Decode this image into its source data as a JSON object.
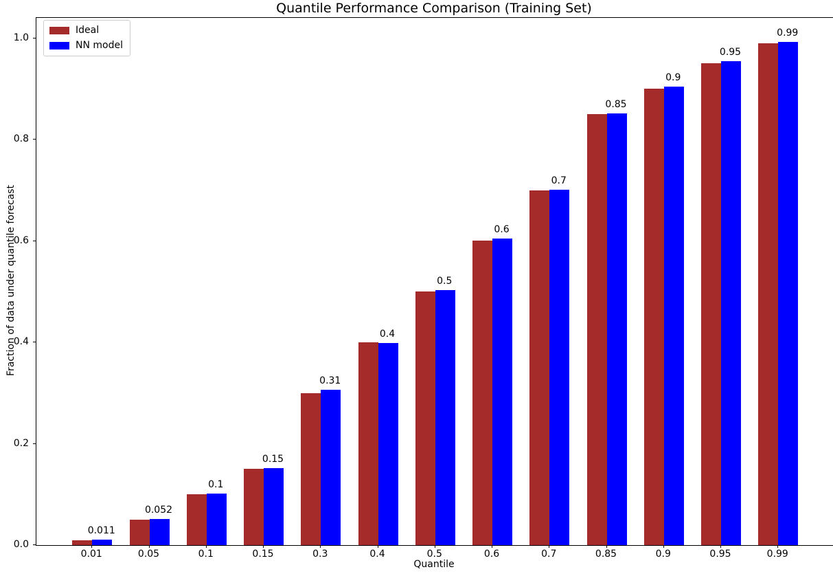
{
  "chart_data": {
    "type": "bar",
    "title": "Quantile Performance Comparison (Training Set)",
    "xlabel": "Quantile",
    "ylabel": "Fraction of data under quantile forecast",
    "categories": [
      "0.01",
      "0.05",
      "0.1",
      "0.15",
      "0.3",
      "0.4",
      "0.5",
      "0.6",
      "0.7",
      "0.85",
      "0.9",
      "0.95",
      "0.99"
    ],
    "series": [
      {
        "name": "Ideal",
        "color": "#A52A2A",
        "values": [
          0.01,
          0.05,
          0.1,
          0.15,
          0.3,
          0.4,
          0.5,
          0.6,
          0.7,
          0.85,
          0.9,
          0.95,
          0.99
        ]
      },
      {
        "name": "NN model",
        "color": "#0000FF",
        "values": [
          0.011,
          0.052,
          0.102,
          0.152,
          0.307,
          0.398,
          0.503,
          0.605,
          0.701,
          0.852,
          0.904,
          0.955,
          0.992
        ]
      }
    ],
    "bar_labels": [
      "0.011",
      "0.052",
      "0.1",
      "0.15",
      "0.31",
      "0.4",
      "0.5",
      "0.6",
      "0.7",
      "0.85",
      "0.9",
      "0.95",
      "0.99"
    ],
    "bar_label_series": "NN model",
    "yticks": [
      0.0,
      0.2,
      0.4,
      0.6,
      0.8,
      1.0
    ],
    "ytick_labels": [
      "0.0",
      "0.2",
      "0.4",
      "0.6",
      "0.8",
      "1.0"
    ],
    "ylim": [
      0,
      1.04
    ],
    "legend_position": "upper-left",
    "grid": false,
    "text_color": "#000000",
    "spine_color": "#000000"
  }
}
